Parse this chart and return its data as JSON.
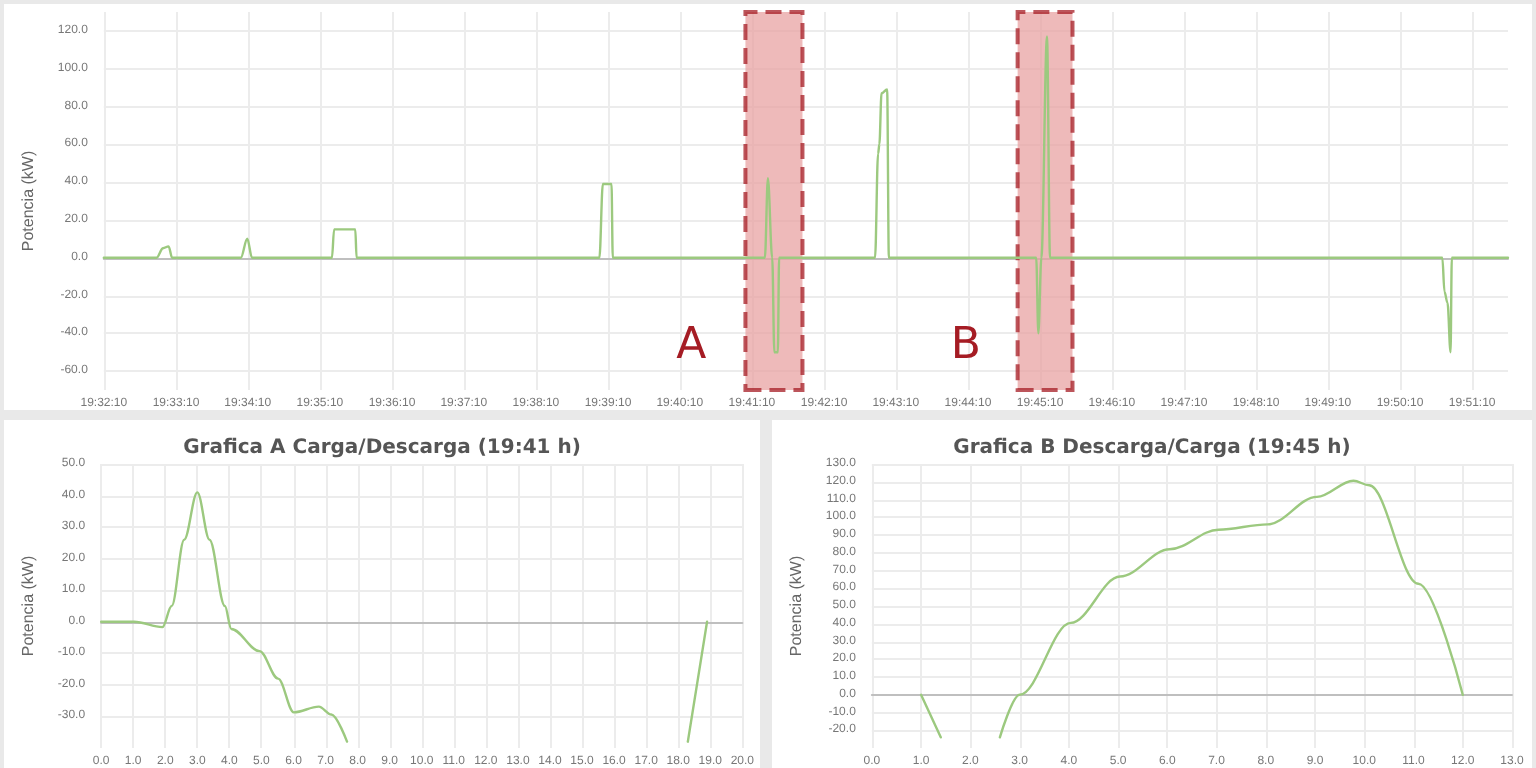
{
  "chart_data": [
    {
      "type": "line",
      "ylabel": "Potencia (kW)",
      "grid": true,
      "marker": "none",
      "x": [
        19.5361,
        19.5483,
        19.5498,
        19.5511,
        19.5519,
        19.5678,
        19.5693,
        19.5704,
        19.5889,
        19.5894,
        19.5943,
        19.5946,
        19.6508,
        19.6516,
        19.6536,
        19.6539,
        19.6891,
        19.6898,
        19.6908,
        19.6913,
        19.6921,
        19.6924,
        19.7146,
        19.7153,
        19.7156,
        19.7161,
        19.7174,
        19.7178,
        19.7519,
        19.7524,
        19.7531,
        19.7544,
        19.7551,
        19.8459,
        19.8464,
        19.8471,
        19.8478,
        19.8481,
        19.8611
      ],
      "series": [
        {
          "color": "#9cc97f",
          "values": [
            0,
            0,
            5,
            6,
            0,
            0,
            10,
            0,
            0,
            15,
            15,
            0,
            0,
            39,
            39,
            0,
            0,
            42,
            0,
            -50,
            -50,
            0,
            0,
            55,
            60,
            87,
            89,
            0,
            0,
            -40,
            0,
            117,
            0,
            0,
            -18,
            -24,
            -50,
            0,
            0
          ]
        }
      ],
      "xlim": [
        19.5361,
        19.8611
      ],
      "xticks": [
        {
          "value": 19.5361,
          "label": "19:32:10"
        },
        {
          "value": 19.5528,
          "label": "19:33:10"
        },
        {
          "value": 19.5694,
          "label": "19:34:10"
        },
        {
          "value": 19.5861,
          "label": "19:35:10"
        },
        {
          "value": 19.6028,
          "label": "19:36:10"
        },
        {
          "value": 19.6194,
          "label": "19:37:10"
        },
        {
          "value": 19.6361,
          "label": "19:38:10"
        },
        {
          "value": 19.6528,
          "label": "19:39:10"
        },
        {
          "value": 19.6694,
          "label": "19:40:10"
        },
        {
          "value": 19.6861,
          "label": "19:41:10"
        },
        {
          "value": 19.7028,
          "label": "19:42:10"
        },
        {
          "value": 19.7194,
          "label": "19:43:10"
        },
        {
          "value": 19.7361,
          "label": "19:44:10"
        },
        {
          "value": 19.7528,
          "label": "19:45:10"
        },
        {
          "value": 19.7694,
          "label": "19:46:10"
        },
        {
          "value": 19.7861,
          "label": "19:47:10"
        },
        {
          "value": 19.8028,
          "label": "19:48:10"
        },
        {
          "value": 19.8194,
          "label": "19:49:10"
        },
        {
          "value": 19.8361,
          "label": "19:50:10"
        },
        {
          "value": 19.8528,
          "label": "19:51:10"
        }
      ],
      "ylim": [
        -70,
        130
      ],
      "yticks": [
        {
          "value": -60,
          "label": "-60.0"
        },
        {
          "value": -40,
          "label": "-40.0"
        },
        {
          "value": -20,
          "label": "-20.0"
        },
        {
          "value": 0,
          "label": "0.0"
        },
        {
          "value": 20,
          "label": "20.0"
        },
        {
          "value": 40,
          "label": "40.0"
        },
        {
          "value": 60,
          "label": "60.0"
        },
        {
          "value": 80,
          "label": "80.0"
        },
        {
          "value": 100,
          "label": "100.0"
        },
        {
          "value": 120,
          "label": "120.0"
        }
      ],
      "bands": [
        {
          "axis": "x",
          "from": 19.6846,
          "to": 19.6978,
          "label": "A",
          "color": "#e8a3a3"
        },
        {
          "axis": "x",
          "from": 19.7476,
          "to": 19.7603,
          "label": "B",
          "color": "#e8a3a3"
        }
      ]
    },
    {
      "type": "line",
      "title": "Grafica A Carga/Descarga (19:41 h)",
      "ylabel": "Potencia (kW)",
      "grid": true,
      "marker": "none",
      "x": [
        0,
        1.03,
        1.91,
        2.2,
        2.59,
        3.0,
        3.38,
        3.86,
        4.06,
        4.94,
        5.52,
        6.01,
        6.79,
        7.18,
        7.67,
        8.0,
        18.0,
        18.3,
        18.9
      ],
      "series": [
        {
          "color": "#9cc97f",
          "values": [
            0,
            0,
            -1.7,
            5,
            26,
            41,
            26,
            5,
            -2.3,
            -9.3,
            -18,
            -28.7,
            -26.9,
            -29.4,
            -38,
            null,
            null,
            -38,
            0
          ]
        }
      ],
      "xlim": [
        0,
        20
      ],
      "xticks": [
        {
          "value": 0,
          "label": "0.0"
        },
        {
          "value": 1,
          "label": "1.0"
        },
        {
          "value": 2,
          "label": "2.0"
        },
        {
          "value": 3,
          "label": "3.0"
        },
        {
          "value": 4,
          "label": "4.0"
        },
        {
          "value": 5,
          "label": "5.0"
        },
        {
          "value": 6,
          "label": "6.0"
        },
        {
          "value": 7,
          "label": "7.0"
        },
        {
          "value": 8,
          "label": "8.0"
        },
        {
          "value": 9,
          "label": "9.0"
        },
        {
          "value": 10,
          "label": "10.0"
        },
        {
          "value": 11,
          "label": "11.0"
        },
        {
          "value": 12,
          "label": "12.0"
        },
        {
          "value": 13,
          "label": "13.0"
        },
        {
          "value": 14,
          "label": "14.0"
        },
        {
          "value": 15,
          "label": "15.0"
        },
        {
          "value": 16,
          "label": "16.0"
        },
        {
          "value": 17,
          "label": "17.0"
        },
        {
          "value": 18,
          "label": "18.0"
        },
        {
          "value": 19,
          "label": "19.0"
        },
        {
          "value": 20,
          "label": "20.0"
        }
      ],
      "ylim": [
        -40,
        50
      ],
      "yticks": [
        {
          "value": -30,
          "label": "-30.0"
        },
        {
          "value": -20,
          "label": "-20.0"
        },
        {
          "value": -10,
          "label": "-10.0"
        },
        {
          "value": 0,
          "label": "0.0"
        },
        {
          "value": 10,
          "label": "10.0"
        },
        {
          "value": 20,
          "label": "20.0"
        },
        {
          "value": 30,
          "label": "30.0"
        },
        {
          "value": 40,
          "label": "40.0"
        },
        {
          "value": 50,
          "label": "50.0"
        }
      ]
    },
    {
      "type": "line",
      "title": "Grafica B Descarga/Carga (19:45 h)",
      "ylabel": "Potencia (kW)",
      "grid": true,
      "marker": "none",
      "x": [
        1.0,
        1.4,
        2.0,
        2.6,
        3.0,
        4.04,
        5.04,
        6.05,
        7.04,
        8.04,
        9.04,
        9.78,
        10.1,
        11.1,
        12.0
      ],
      "series": [
        {
          "color": "#9cc97f",
          "values": [
            0,
            -24,
            null,
            -24,
            0,
            40.5,
            66.6,
            82,
            93,
            96,
            111.5,
            120.6,
            118,
            62.5,
            0
          ]
        }
      ],
      "xlim": [
        0,
        13
      ],
      "xticks": [
        {
          "value": 0,
          "label": "0.0"
        },
        {
          "value": 1,
          "label": "1.0"
        },
        {
          "value": 2,
          "label": "2.0"
        },
        {
          "value": 3,
          "label": "3.0"
        },
        {
          "value": 4,
          "label": "4.0"
        },
        {
          "value": 5,
          "label": "5.0"
        },
        {
          "value": 6,
          "label": "6.0"
        },
        {
          "value": 7,
          "label": "7.0"
        },
        {
          "value": 8,
          "label": "8.0"
        },
        {
          "value": 9,
          "label": "9.0"
        },
        {
          "value": 10,
          "label": "10.0"
        },
        {
          "value": 11,
          "label": "11.0"
        },
        {
          "value": 12,
          "label": "12.0"
        },
        {
          "value": 13,
          "label": "13.0"
        }
      ],
      "ylim": [
        -30,
        130
      ],
      "yticks": [
        {
          "value": -20,
          "label": "-20.0"
        },
        {
          "value": -10,
          "label": "-10.0"
        },
        {
          "value": 0,
          "label": "0.0"
        },
        {
          "value": 10,
          "label": "10.0"
        },
        {
          "value": 20,
          "label": "20.0"
        },
        {
          "value": 30,
          "label": "30.0"
        },
        {
          "value": 40,
          "label": "40.0"
        },
        {
          "value": 50,
          "label": "50.0"
        },
        {
          "value": 60,
          "label": "60.0"
        },
        {
          "value": 70,
          "label": "70.0"
        },
        {
          "value": 80,
          "label": "80.0"
        },
        {
          "value": 90,
          "label": "90.0"
        },
        {
          "value": 100,
          "label": "100.0"
        },
        {
          "value": 110,
          "label": "110.0"
        },
        {
          "value": 120,
          "label": "120.0"
        },
        {
          "value": 130,
          "label": "130.0"
        }
      ]
    }
  ]
}
